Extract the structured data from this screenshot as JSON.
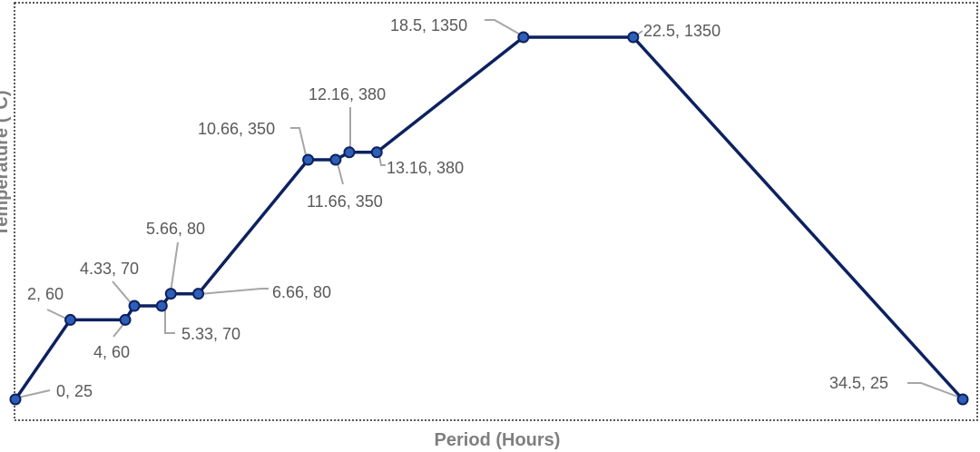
{
  "chart_data": {
    "type": "line",
    "title": "",
    "xlabel": "Period (Hours)",
    "ylabel": "Temperature (°C)",
    "y_scale": "log",
    "xlim": [
      0,
      34.5
    ],
    "ylim": [
      25,
      1350
    ],
    "grid": false,
    "legend": "none",
    "colors": {
      "line": "#0d2160",
      "marker": "#2e5fb8",
      "marker_edge": "#0d2160",
      "label": "#595959",
      "leader": "#a6a6a6"
    },
    "series": [
      {
        "x": [
          0,
          2,
          4,
          4.33,
          5.33,
          5.66,
          6.66,
          10.66,
          11.66,
          12.16,
          13.16,
          18.5,
          22.5,
          34.5
        ],
        "y": [
          25,
          60,
          60,
          70,
          70,
          80,
          80,
          350,
          350,
          380,
          380,
          1350,
          1350,
          25
        ]
      }
    ],
    "data_labels": [
      "0, 25",
      "2, 60",
      "4, 60",
      "4.33, 70",
      "5.33, 70",
      "5.66, 80",
      "6.66, 80",
      "10.66, 350",
      "11.66, 350",
      "12.16, 380",
      "13.16, 380",
      "18.5, 1350",
      "22.5, 1350",
      "34.5, 25"
    ]
  }
}
